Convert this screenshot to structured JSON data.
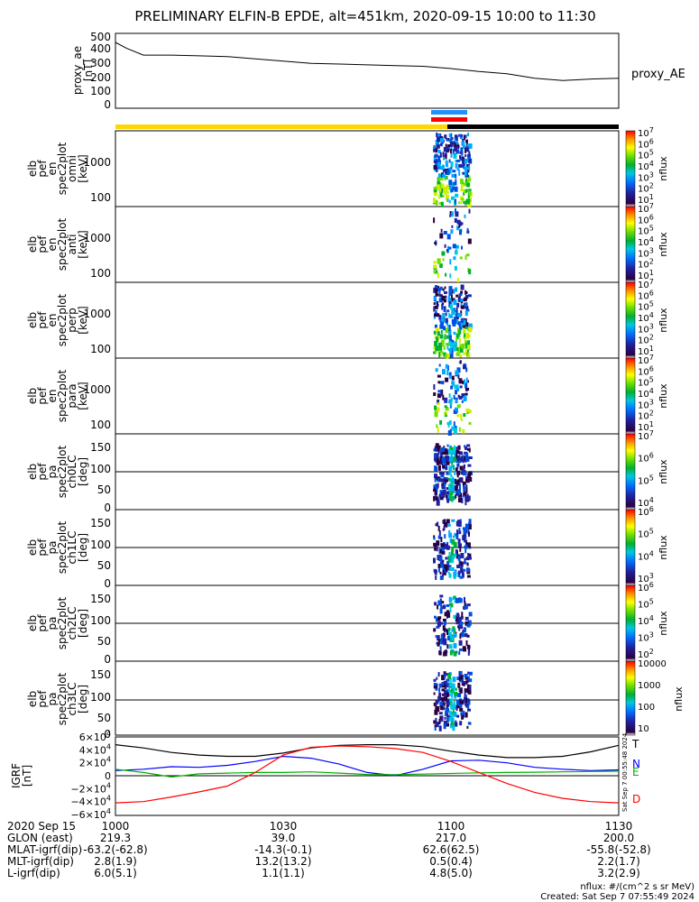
{
  "title": "PRELIMINARY ELFIN-B EPDE, alt=451km, 2020-09-15 10:00 to 11:30",
  "ae_panel": {
    "ylabel": [
      "proxy_ae",
      "[nT]"
    ],
    "yticks": [
      "500",
      "400",
      "300",
      "200",
      "100",
      "0"
    ],
    "legend": "proxy_AE"
  },
  "spec_panels": [
    {
      "ylabel": [
        "elb",
        "pef",
        "en",
        "spec2plot",
        "omni",
        "[keV]"
      ],
      "yticks": [
        "1000",
        "100"
      ],
      "cb_label": "nflux"
    },
    {
      "ylabel": [
        "elb",
        "pef",
        "en",
        "spec2plot",
        "anti",
        "[keV]"
      ],
      "yticks": [
        "1000",
        "100"
      ],
      "cb_label": "nflux"
    },
    {
      "ylabel": [
        "elb",
        "pef",
        "en",
        "spec2plot",
        "perp",
        "[keV]"
      ],
      "yticks": [
        "1000",
        "100"
      ],
      "cb_label": "nflux"
    },
    {
      "ylabel": [
        "elb",
        "pef",
        "en",
        "spec2plot",
        "para",
        "[keV]"
      ],
      "yticks": [
        "1000",
        "100"
      ],
      "cb_label": "nflux"
    }
  ],
  "pa_panels": [
    {
      "ylabel": [
        "elb",
        "pef",
        "pa",
        "spec2plot",
        "ch0LC",
        "[deg]"
      ],
      "yticks": [
        "150",
        "100",
        "50",
        "0"
      ],
      "cb_label": "nflux"
    },
    {
      "ylabel": [
        "elb",
        "pef",
        "pa",
        "spec2plot",
        "ch1LC",
        "[deg]"
      ],
      "yticks": [
        "150",
        "100",
        "50",
        "0"
      ],
      "cb_label": "nflux"
    },
    {
      "ylabel": [
        "elb",
        "pef",
        "pa",
        "spec2plot",
        "ch2LC",
        "[deg]"
      ],
      "yticks": [
        "150",
        "100",
        "50",
        "0"
      ],
      "cb_label": "nflux"
    },
    {
      "ylabel": [
        "elb",
        "pef",
        "pa",
        "spec2plot",
        "ch3LC",
        "[deg]"
      ],
      "yticks": [
        "150",
        "100",
        "50",
        "0"
      ],
      "cb_label": "nflux"
    }
  ],
  "cb_ticks_a": [
    "10^7",
    "10^6",
    "10^5",
    "10^4",
    "10^3",
    "10^2",
    "10^1"
  ],
  "cb_ticks_ch0": [
    "10^7",
    "10^6",
    "10^5",
    "10^4"
  ],
  "cb_ticks_ch1": [
    "10^6",
    "10^5",
    "10^4",
    "10^3"
  ],
  "cb_ticks_ch2": [
    "10^6",
    "10^5",
    "10^4",
    "10^3",
    "10^2"
  ],
  "cb_ticks_ch3": [
    "10000",
    "1000",
    "100",
    "10"
  ],
  "igrf_panel": {
    "ylabel": [
      "IGRF",
      "[nT]"
    ],
    "yticks": [
      "6×10^4",
      "4×10^4",
      "2×10^4",
      "0",
      "−2×10^4",
      "−4×10^4",
      "−6×10^4"
    ],
    "legend": [
      "T",
      "N",
      "E",
      "D"
    ],
    "side_text": "Sat Sep  7 00:55:48 2024"
  },
  "x_ticks": [
    "1000",
    "1030",
    "1100",
    "1130"
  ],
  "ephem": {
    "labels": [
      "2020 Sep 15",
      "GLON (east)",
      "MLAT-igrf(dip)",
      "MLT-igrf(dip)",
      "L-igrf(dip)"
    ],
    "columns": [
      [
        "219.3",
        "-63.2(-62.8)",
        "2.8(1.9)",
        "6.0(5.1)"
      ],
      [
        "39.0",
        "-14.3(-0.1)",
        "13.2(13.2)",
        "1.1(1.1)"
      ],
      [
        "217.0",
        "62.6(62.5)",
        "0.5(0.4)",
        "4.8(5.0)"
      ],
      [
        "200.0",
        "-55.8(-52.8)",
        "2.2(1.7)",
        "3.2(2.9)"
      ]
    ]
  },
  "footer": [
    "nflux: #/(cm^2 s sr MeV)",
    "Created: Sat Sep  7 07:55:49 2024"
  ],
  "chart_data": {
    "type": "line",
    "x_range": [
      "10:00",
      "11:30"
    ],
    "proxy_ae": {
      "ylim": [
        0,
        500
      ],
      "x_min": [
        0,
        2,
        5,
        10,
        15,
        20,
        25,
        30,
        35,
        40,
        45,
        50,
        55,
        60,
        65,
        70,
        75,
        80,
        85,
        90
      ],
      "values": [
        440,
        400,
        355,
        355,
        350,
        345,
        330,
        315,
        300,
        295,
        290,
        285,
        280,
        265,
        245,
        230,
        200,
        185,
        195,
        200
      ]
    },
    "igrf": {
      "ylim": [
        -60000,
        60000
      ],
      "x_min": [
        0,
        5,
        10,
        15,
        20,
        25,
        30,
        35,
        40,
        45,
        50,
        55,
        60,
        65,
        70,
        75,
        80,
        85,
        90
      ],
      "series": [
        {
          "name": "T",
          "color": "#000000",
          "values": [
            48000,
            43000,
            36000,
            32000,
            30000,
            30000,
            35000,
            43000,
            47000,
            48000,
            48000,
            45000,
            38000,
            32000,
            28000,
            28000,
            30000,
            37000,
            47000
          ]
        },
        {
          "name": "N",
          "color": "#0000ff",
          "values": [
            8000,
            10000,
            14000,
            13000,
            16000,
            22000,
            30000,
            27000,
            18000,
            5000,
            0,
            10000,
            23000,
            24000,
            20000,
            13000,
            10000,
            8000,
            9000
          ]
        },
        {
          "name": "E",
          "color": "#00b000",
          "values": [
            10000,
            5000,
            -2000,
            3000,
            4000,
            5000,
            5000,
            6000,
            4000,
            2000,
            1500,
            2500,
            3500,
            4500,
            5000,
            5500,
            6000,
            6500,
            7000
          ]
        },
        {
          "name": "D",
          "color": "#ff0000",
          "values": [
            -42000,
            -40000,
            -33000,
            -25000,
            -16000,
            5000,
            32000,
            44000,
            46000,
            45000,
            42000,
            36000,
            22000,
            5000,
            -12000,
            -26000,
            -35000,
            -40000,
            -42000
          ]
        }
      ]
    },
    "burst": {
      "x_min_start": 58,
      "x_min_end": 62
    },
    "energy_ylim_keV": [
      60,
      7000
    ],
    "pitch_ylim_deg": [
      0,
      180
    ]
  },
  "colors": {
    "state_bar_day": "#ffd700",
    "state_bar_night": "#000000",
    "burst_blue": "#1e90ff",
    "burst_red": "#ff0000"
  }
}
